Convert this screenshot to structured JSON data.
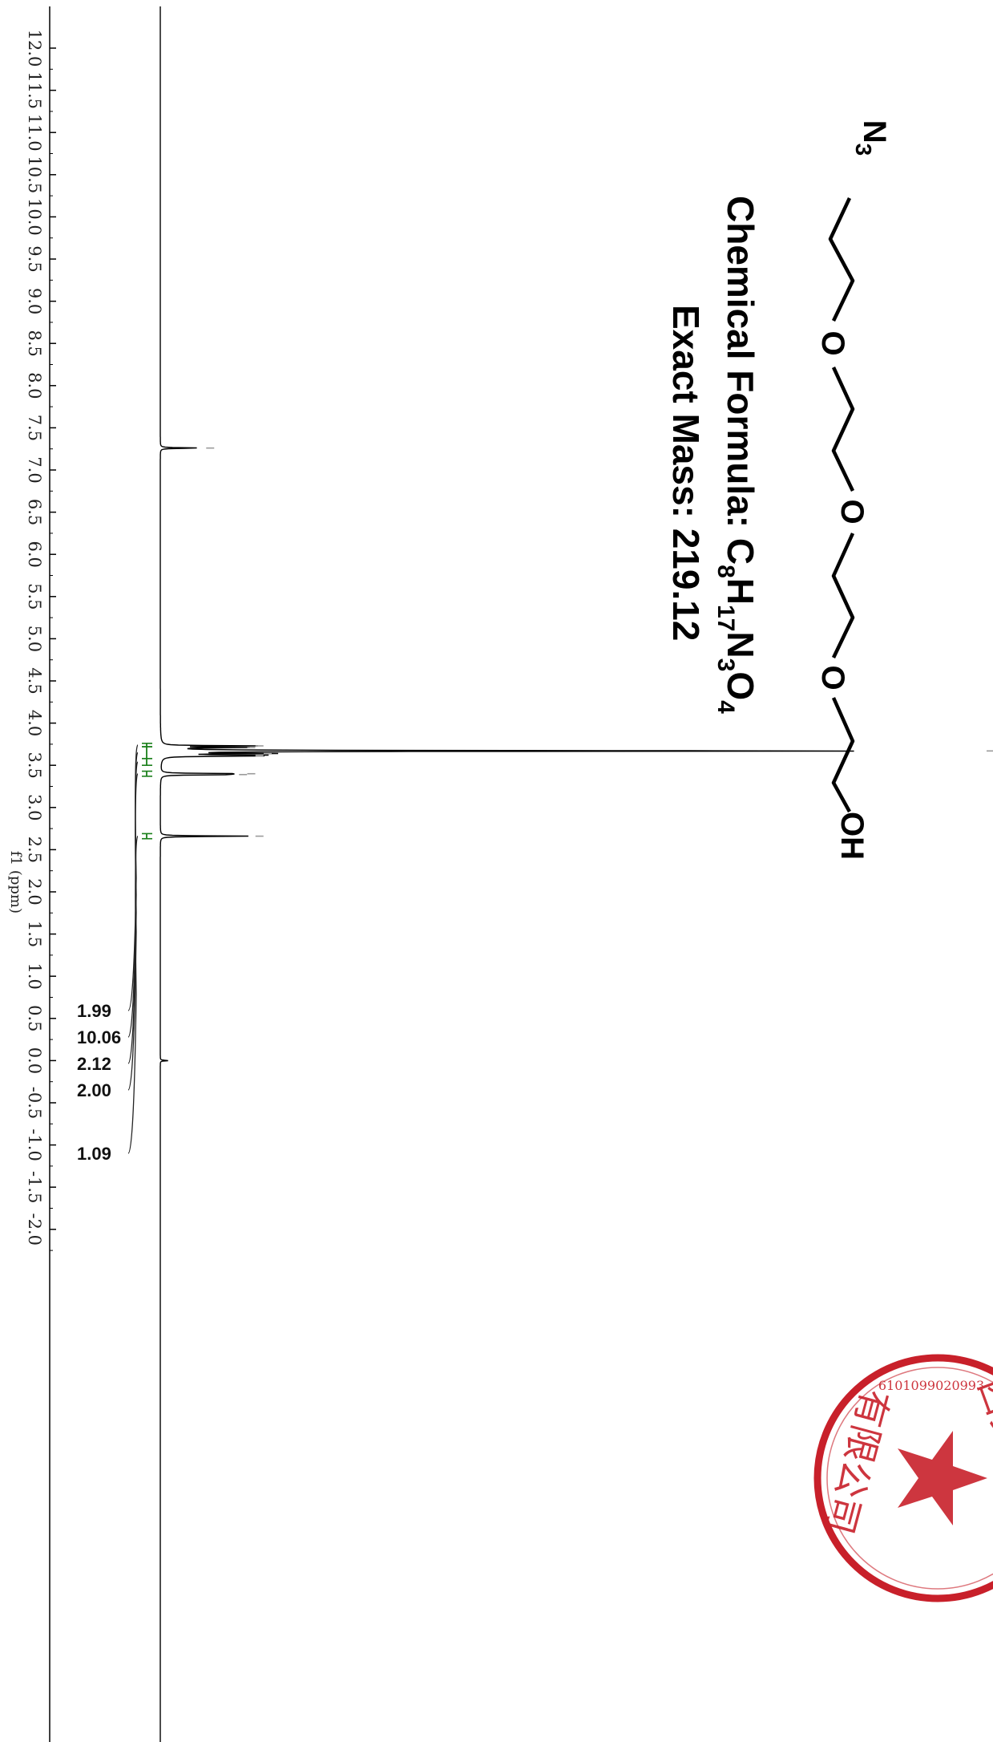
{
  "chart_data": {
    "type": "line",
    "title": "",
    "xlabel": "f1 (ppm)",
    "ylabel": "",
    "xlim": [
      12.5,
      -2.4
    ],
    "x_axis_reversed": true,
    "grid": false,
    "orientation": "rotated-90",
    "tick_labels": [
      "12.0",
      "11.5",
      "11.0",
      "10.5",
      "10.0",
      "9.5",
      "9.0",
      "8.5",
      "8.0",
      "7.5",
      "7.0",
      "6.5",
      "6.0",
      "5.5",
      "5.0",
      "4.5",
      "4.0",
      "3.5",
      "3.0",
      "2.5",
      "2.0",
      "1.5",
      "1.0",
      "0.5",
      "0.0",
      "-0.5",
      "-1.0",
      "-1.5",
      "-2.0"
    ],
    "peaks": [
      {
        "ppm": 7.26,
        "intensity": 0.05
      },
      {
        "ppm": 3.73,
        "intensity": 0.11
      },
      {
        "ppm": 3.71,
        "intensity": 0.1
      },
      {
        "ppm": 3.67,
        "intensity": 1.0
      },
      {
        "ppm": 3.64,
        "intensity": 0.12
      },
      {
        "ppm": 3.62,
        "intensity": 0.11
      },
      {
        "ppm": 3.61,
        "intensity": 0.11
      },
      {
        "ppm": 3.4,
        "intensity": 0.1
      },
      {
        "ppm": 3.39,
        "intensity": 0.09
      },
      {
        "ppm": 2.66,
        "intensity": 0.11
      },
      {
        "ppm": 0.0,
        "intensity": 0.01
      }
    ],
    "integrals": [
      {
        "label": "1.99",
        "from": 3.76,
        "to": 3.72
      },
      {
        "label": "10.06",
        "from": 3.72,
        "to": 3.58
      },
      {
        "label": "2.12",
        "from": 3.58,
        "to": 3.5
      },
      {
        "label": "2.00",
        "from": 3.43,
        "to": 3.37
      },
      {
        "label": "1.09",
        "from": 2.69,
        "to": 2.63
      }
    ],
    "colors": {
      "spectrum": "#000000",
      "integral": "#1a7f1a",
      "peak_marker": "#9a9a9a",
      "stamp": "#c8202a"
    }
  },
  "structure": {
    "labels": {
      "n3": "N",
      "n3_sub": "3",
      "o1": "O",
      "o2": "O",
      "o3": "O",
      "oh": "OH"
    },
    "formula_label": "Chemical Formula: ",
    "formula_parts": [
      {
        "text": "C",
        "sub": "8"
      },
      {
        "text": "H",
        "sub": "17"
      },
      {
        "text": "N",
        "sub": "3"
      },
      {
        "text": "O",
        "sub": "4"
      }
    ],
    "exact_mass": "Exact Mass: 219.12"
  },
  "stamp": {
    "icon": "red-company-seal-icon",
    "text_top": "西安积学",
    "text_bottom": "有限公司",
    "code": "6101099020993"
  }
}
